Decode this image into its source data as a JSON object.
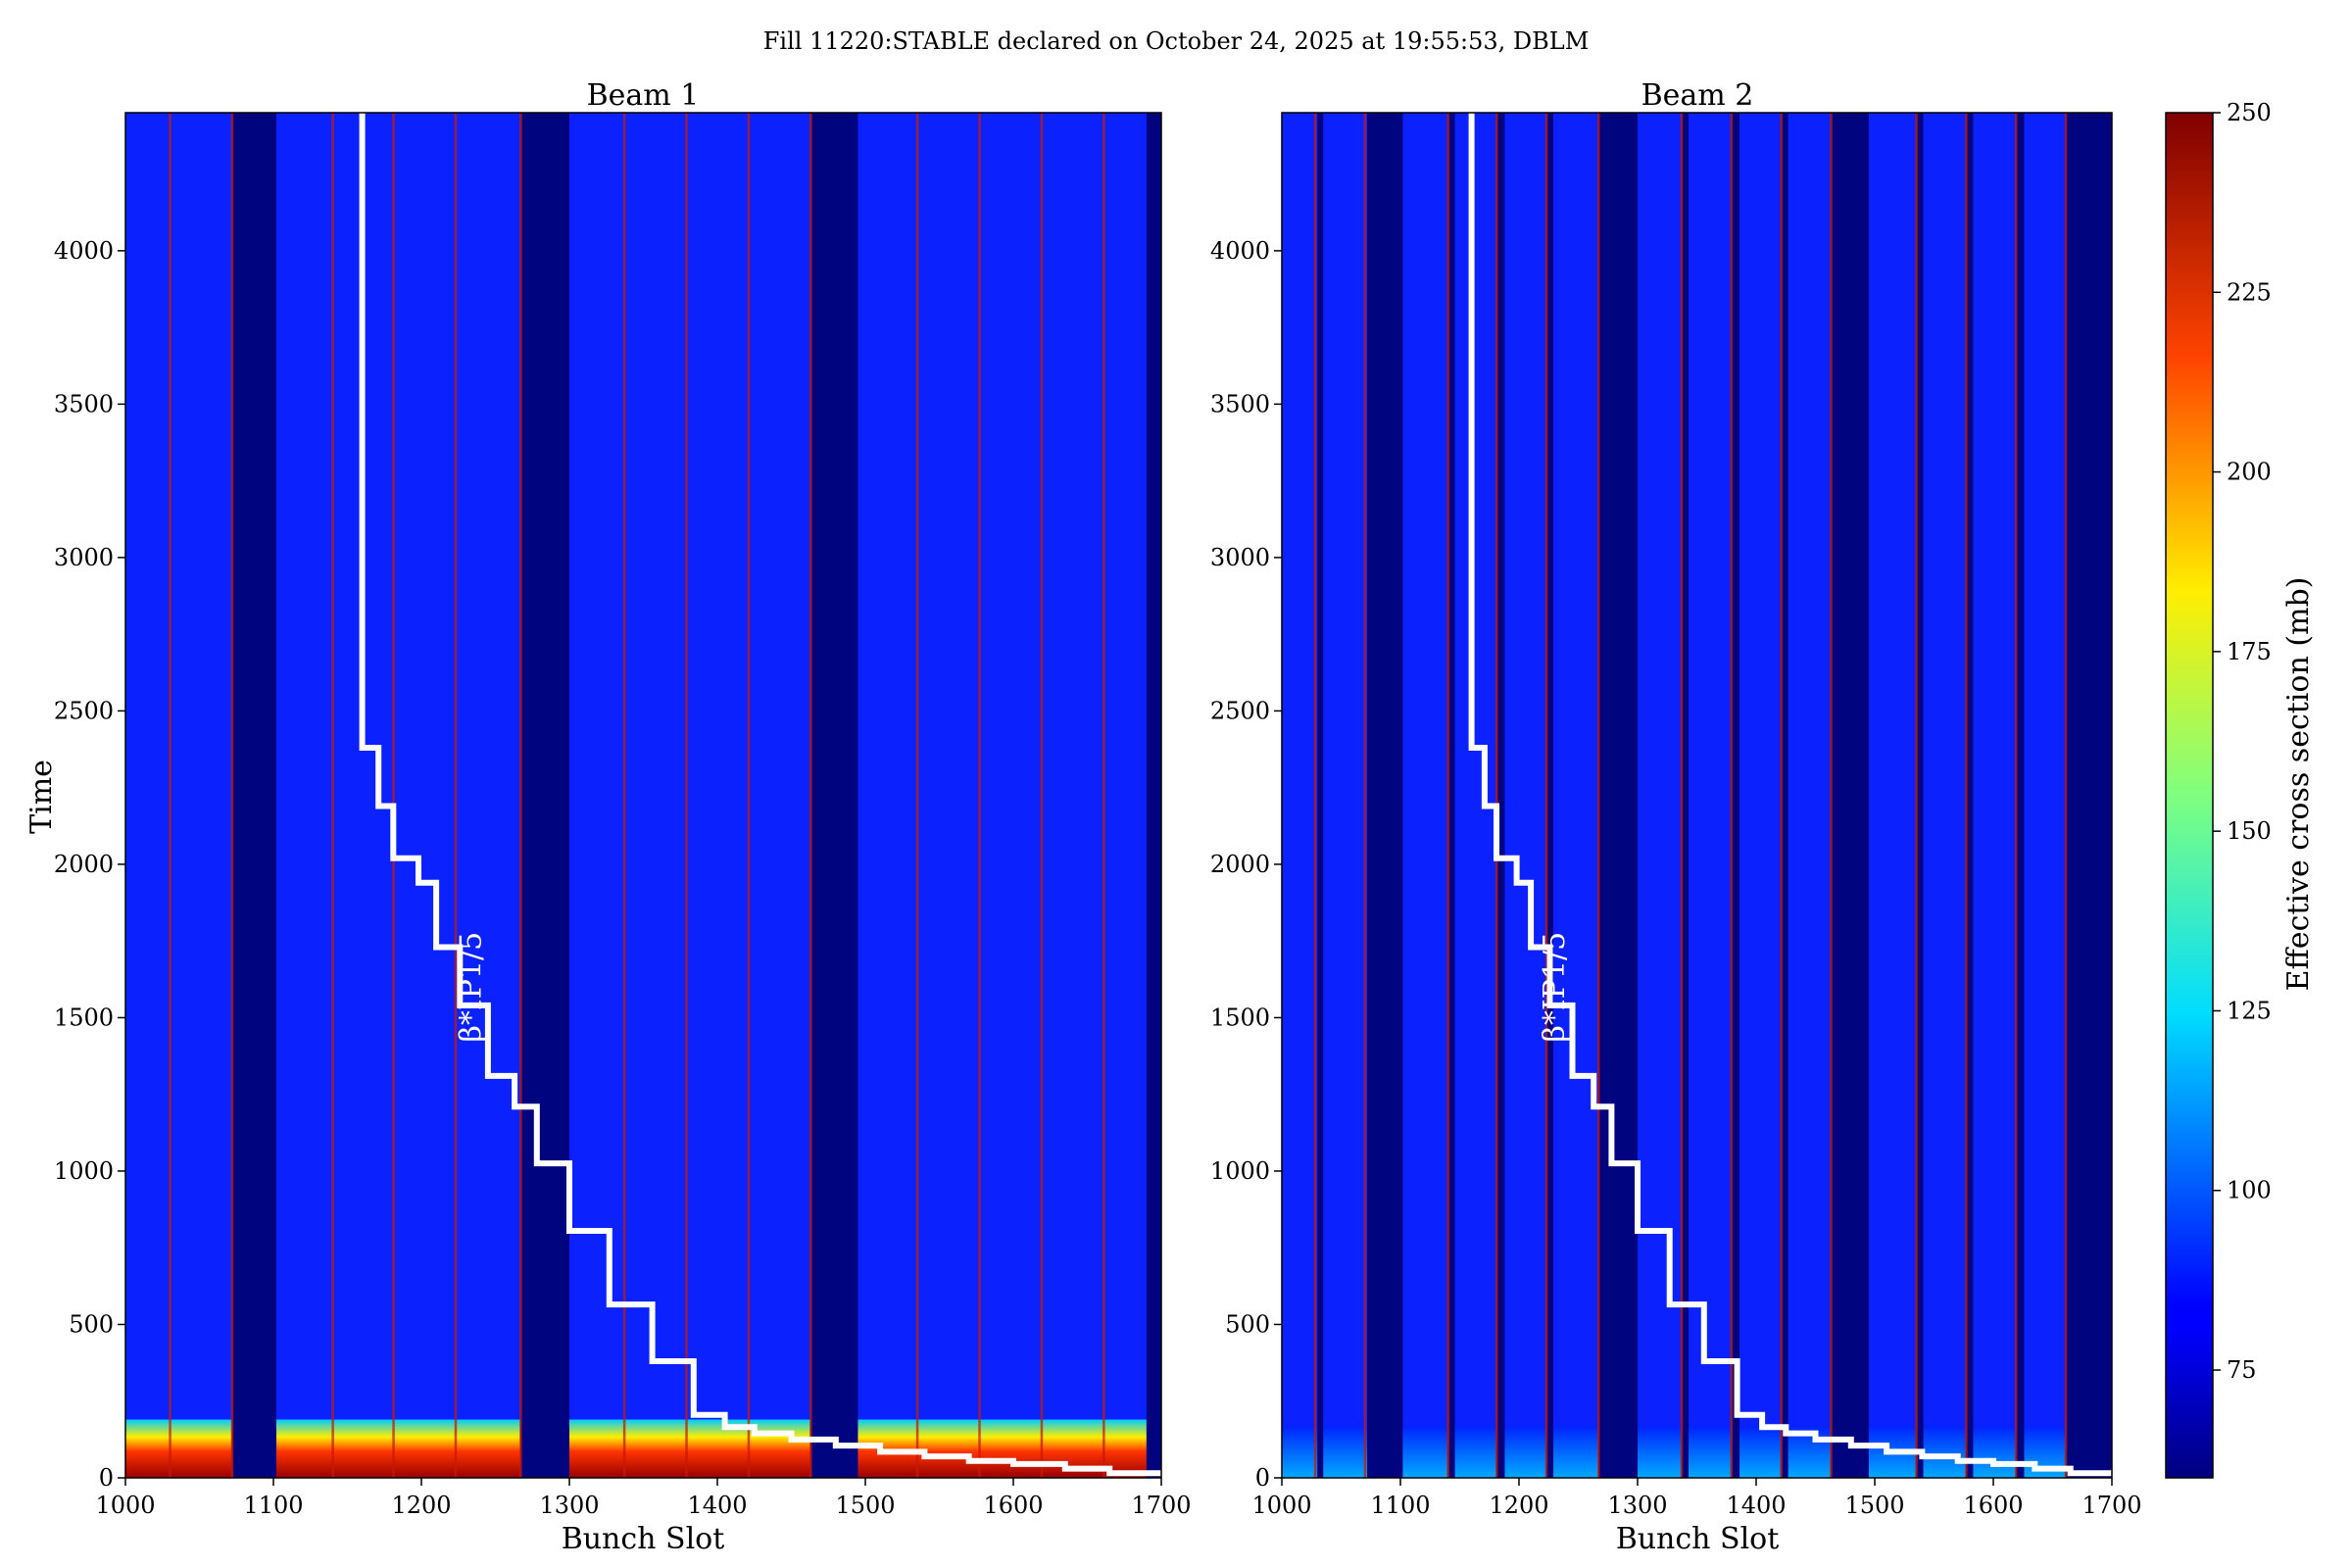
{
  "figure": {
    "suptitle": "Fill 11220:STABLE declared on October 24, 2025 at 19:55:53, DBLM"
  },
  "colors": {
    "stepline": "#ffffff",
    "colormap": "jet"
  },
  "chart_data": [
    {
      "type": "heatmap",
      "title": "Beam 1",
      "xlabel": "Bunch Slot",
      "ylabel": "Time",
      "xlim": [
        1000,
        1700
      ],
      "ylim": [
        0,
        4450
      ],
      "xticks": [
        1000,
        1100,
        1200,
        1300,
        1400,
        1500,
        1600,
        1700
      ],
      "yticks": [
        0,
        500,
        1000,
        1500,
        2000,
        2500,
        3000,
        3500,
        4000
      ],
      "empty_slot_ranges": [
        [
          1072,
          1102
        ],
        [
          1267,
          1300
        ],
        [
          1463,
          1495
        ],
        [
          1690,
          1700
        ]
      ],
      "bright_edge_slots": [
        1030,
        1072,
        1140,
        1181,
        1223,
        1267,
        1337,
        1379,
        1421,
        1463,
        1535,
        1577,
        1619,
        1661
      ],
      "high_region_time_max": 190,
      "baseline_value": 82,
      "annotation": {
        "text": "β*IP1/5",
        "x": 1240,
        "y": 1420
      },
      "step_line": {
        "name": "β*IP1/5",
        "x": [
          1160,
          1160,
          1171,
          1171,
          1181,
          1181,
          1198,
          1198,
          1210,
          1210,
          1226,
          1226,
          1245,
          1245,
          1263,
          1263,
          1278,
          1278,
          1300,
          1300,
          1327,
          1327,
          1356,
          1356,
          1384,
          1384,
          1405,
          1405,
          1425,
          1425,
          1450,
          1450,
          1480,
          1480,
          1510,
          1510,
          1540,
          1540,
          1570,
          1570,
          1600,
          1600,
          1635,
          1635,
          1665,
          1665,
          1700
        ],
        "y": [
          4450,
          2380,
          2380,
          2190,
          2190,
          2020,
          2020,
          1940,
          1940,
          1730,
          1730,
          1540,
          1540,
          1310,
          1310,
          1210,
          1210,
          1025,
          1025,
          805,
          805,
          565,
          565,
          380,
          380,
          205,
          205,
          165,
          165,
          145,
          145,
          125,
          125,
          105,
          105,
          85,
          85,
          70,
          70,
          55,
          55,
          45,
          45,
          30,
          30,
          15,
          15
        ]
      }
    },
    {
      "type": "heatmap",
      "title": "Beam 2",
      "xlabel": "Bunch Slot",
      "ylabel": "",
      "xlim": [
        1000,
        1700
      ],
      "ylim": [
        0,
        4450
      ],
      "xticks": [
        1000,
        1100,
        1200,
        1300,
        1400,
        1500,
        1600,
        1700
      ],
      "yticks": [
        0,
        500,
        1000,
        1500,
        2000,
        2500,
        3000,
        3500,
        4000
      ],
      "empty_slot_ranges": [
        [
          1030,
          1035
        ],
        [
          1072,
          1102
        ],
        [
          1140,
          1146
        ],
        [
          1181,
          1188
        ],
        [
          1223,
          1229
        ],
        [
          1267,
          1300
        ],
        [
          1337,
          1343
        ],
        [
          1379,
          1386
        ],
        [
          1421,
          1427
        ],
        [
          1463,
          1495
        ],
        [
          1535,
          1541
        ],
        [
          1577,
          1583
        ],
        [
          1619,
          1626
        ],
        [
          1661,
          1700
        ]
      ],
      "bright_edge_slots": [
        1028,
        1070,
        1140,
        1181,
        1223,
        1267,
        1337,
        1379,
        1421,
        1463,
        1535,
        1577,
        1619,
        1661
      ],
      "high_region_time_max": 170,
      "baseline_value": 82,
      "annotation": {
        "text": "β*IP1/5",
        "x": 1238,
        "y": 1420
      },
      "step_line": {
        "name": "β*IP1/5",
        "x": [
          1160,
          1160,
          1171,
          1171,
          1181,
          1181,
          1198,
          1198,
          1210,
          1210,
          1226,
          1226,
          1245,
          1245,
          1263,
          1263,
          1278,
          1278,
          1300,
          1300,
          1327,
          1327,
          1356,
          1356,
          1384,
          1384,
          1405,
          1405,
          1425,
          1425,
          1450,
          1450,
          1480,
          1480,
          1510,
          1510,
          1540,
          1540,
          1570,
          1570,
          1600,
          1600,
          1635,
          1635,
          1665,
          1665,
          1700
        ],
        "y": [
          4450,
          2380,
          2380,
          2190,
          2190,
          2020,
          2020,
          1940,
          1940,
          1730,
          1730,
          1540,
          1540,
          1310,
          1310,
          1210,
          1210,
          1025,
          1025,
          805,
          805,
          565,
          565,
          380,
          380,
          205,
          205,
          165,
          165,
          145,
          145,
          125,
          125,
          105,
          105,
          85,
          85,
          70,
          70,
          55,
          55,
          45,
          45,
          30,
          30,
          15,
          15
        ]
      }
    }
  ],
  "colorbar": {
    "label": "Effective cross section (mb)",
    "min": 60,
    "max": 250,
    "ticks": [
      75,
      100,
      125,
      150,
      175,
      200,
      225,
      250
    ]
  }
}
